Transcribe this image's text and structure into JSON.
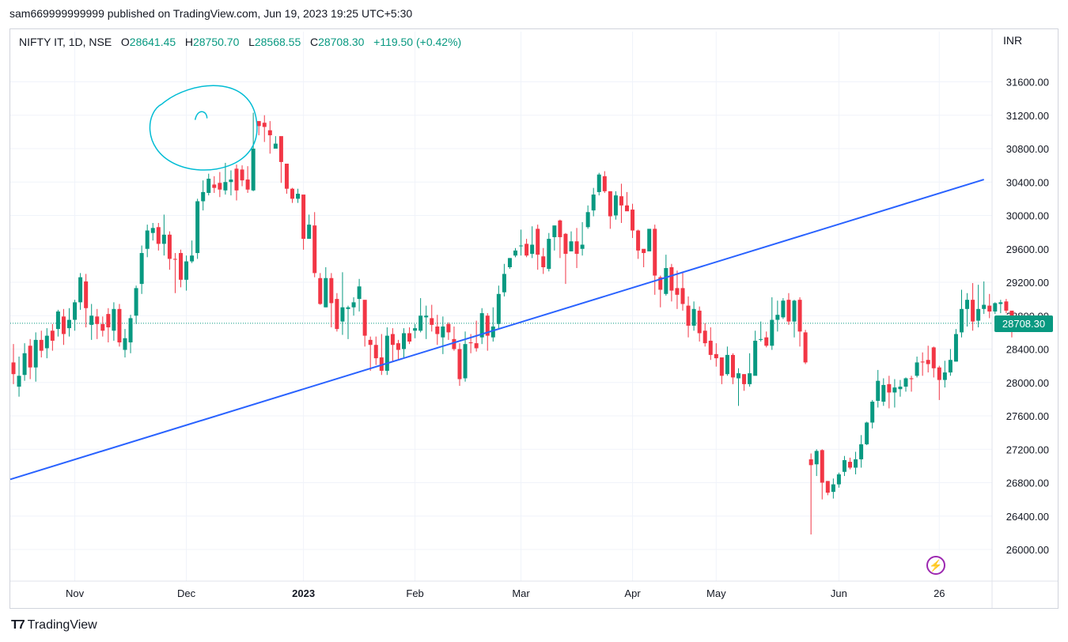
{
  "header": {
    "published_line": "sam669999999999 published on TradingView.com, Jun 19, 2023 19:25 UTC+5:30"
  },
  "legend": {
    "symbol": "NIFTY IT, 1D, NSE",
    "o_label": "O",
    "o_value": "28641.45",
    "h_label": "H",
    "h_value": "28750.70",
    "l_label": "L",
    "l_value": "28568.55",
    "c_label": "C",
    "c_value": "28708.30",
    "change": "+119.50 (+0.42%)"
  },
  "currency": "INR",
  "last_price_label": "28708.30",
  "brand": {
    "name": "TradingView"
  },
  "icons": {
    "flash": "flash-icon",
    "logo": "tradingview-logo-icon"
  },
  "colors": {
    "up": "#089981",
    "down": "#f23645",
    "trendline": "#2962ff",
    "annotation": "#00bcd4"
  },
  "chart_data": {
    "type": "candlestick",
    "symbol": "NIFTY IT",
    "interval": "1D",
    "exchange": "NSE",
    "ylim": [
      25800,
      31900
    ],
    "y_ticks": [
      "26000.00",
      "26400.00",
      "26800.00",
      "27200.00",
      "27600.00",
      "28000.00",
      "28400.00",
      "28800.00",
      "29200.00",
      "29600.00",
      "30000.00",
      "30400.00",
      "30800.00",
      "31200.00",
      "31600.00"
    ],
    "y_tick_values": [
      26000,
      26400,
      26800,
      27200,
      27600,
      28000,
      28400,
      28800,
      29200,
      29600,
      30000,
      30400,
      30800,
      31200,
      31600
    ],
    "x_ticks": [
      {
        "label": "Nov",
        "bar": 11
      },
      {
        "label": "Dec",
        "bar": 31
      },
      {
        "label": "2023",
        "bar": 52
      },
      {
        "label": "Feb",
        "bar": 72
      },
      {
        "label": "Mar",
        "bar": 91
      },
      {
        "label": "Apr",
        "bar": 111
      },
      {
        "label": "May",
        "bar": 126
      },
      {
        "label": "Jun",
        "bar": 148
      },
      {
        "label": "26",
        "bar": 166
      }
    ],
    "last_price": 28708.3,
    "candles": [
      [
        28240,
        28100,
        28460,
        27980
      ],
      [
        27950,
        28080,
        28310,
        27830
      ],
      [
        28090,
        28350,
        28470,
        28020
      ],
      [
        28440,
        28180,
        28520,
        28040
      ],
      [
        28180,
        28510,
        28600,
        28010
      ],
      [
        28510,
        28380,
        28620,
        28300
      ],
      [
        28410,
        28560,
        28650,
        28290
      ],
      [
        28620,
        28500,
        28700,
        28380
      ],
      [
        28640,
        28850,
        28870,
        28550
      ],
      [
        28790,
        28580,
        28880,
        28450
      ],
      [
        28650,
        28750,
        28890,
        28550
      ],
      [
        28750,
        28960,
        28990,
        28620
      ],
      [
        28960,
        29260,
        29310,
        28870
      ],
      [
        29210,
        28890,
        29300,
        28660
      ],
      [
        28690,
        28800,
        28940,
        28510
      ],
      [
        28790,
        28700,
        28880,
        28520
      ],
      [
        28700,
        28620,
        28790,
        28550
      ],
      [
        28820,
        28660,
        28890,
        28480
      ],
      [
        28620,
        28880,
        28960,
        28500
      ],
      [
        28880,
        28480,
        28940,
        28430
      ],
      [
        28390,
        28530,
        28640,
        28300
      ],
      [
        28480,
        28770,
        28810,
        28350
      ],
      [
        28800,
        29130,
        29160,
        28700
      ],
      [
        29180,
        29550,
        29640,
        29060
      ],
      [
        29600,
        29820,
        29890,
        29500
      ],
      [
        29790,
        29850,
        29910,
        29700
      ],
      [
        29860,
        29660,
        29910,
        29580
      ],
      [
        29660,
        29770,
        30010,
        29520
      ],
      [
        29770,
        29480,
        29810,
        29350
      ],
      [
        29480,
        29470,
        29550,
        29070
      ],
      [
        29550,
        29230,
        29590,
        29140
      ],
      [
        29230,
        29450,
        29520,
        29100
      ],
      [
        29450,
        29520,
        29700,
        29430
      ],
      [
        29550,
        30170,
        30200,
        29480
      ],
      [
        30170,
        30280,
        30420,
        30060
      ],
      [
        30270,
        30440,
        30500,
        30240
      ],
      [
        30370,
        30330,
        30470,
        30270
      ],
      [
        30390,
        30310,
        30520,
        30220
      ],
      [
        30300,
        30400,
        30630,
        30250
      ],
      [
        30400,
        30430,
        30540,
        30240
      ],
      [
        30560,
        30300,
        30610,
        30180
      ],
      [
        30550,
        30420,
        30600,
        30350
      ],
      [
        30430,
        30310,
        30590,
        30270
      ],
      [
        30300,
        30800,
        31230,
        30290
      ],
      [
        31130,
        31070,
        31130,
        30960
      ],
      [
        31110,
        31060,
        31200,
        30880
      ],
      [
        31020,
        30960,
        31130,
        30740
      ],
      [
        30800,
        30860,
        30950,
        30820
      ],
      [
        30950,
        30640,
        30680,
        30390
      ],
      [
        30620,
        30320,
        30530,
        30260
      ],
      [
        30320,
        30200,
        30330,
        30150
      ],
      [
        30200,
        30260,
        30320,
        30150
      ],
      [
        30250,
        29720,
        30200,
        29590
      ],
      [
        29720,
        29890,
        30010,
        29870
      ],
      [
        29880,
        29310,
        30040,
        29260
      ],
      [
        29250,
        28940,
        29310,
        28930
      ],
      [
        28900,
        29250,
        29380,
        28900
      ],
      [
        29250,
        28950,
        29310,
        28660
      ],
      [
        29000,
        28640,
        29070,
        28610
      ],
      [
        28730,
        28900,
        29320,
        28570
      ],
      [
        28880,
        28900,
        28920,
        28520
      ],
      [
        28900,
        28960,
        29020,
        28800
      ],
      [
        29000,
        29150,
        29240,
        28850
      ],
      [
        28990,
        28560,
        28920,
        28430
      ],
      [
        28510,
        28450,
        28550,
        28140
      ],
      [
        28450,
        28290,
        28550,
        28210
      ],
      [
        28300,
        28140,
        28580,
        28090
      ],
      [
        28140,
        28560,
        28660,
        28090
      ],
      [
        28580,
        28450,
        28650,
        28250
      ],
      [
        28470,
        28390,
        28510,
        28280
      ],
      [
        28400,
        28590,
        28650,
        28300
      ],
      [
        28590,
        28490,
        28660,
        28460
      ],
      [
        28620,
        28650,
        28700,
        28530
      ],
      [
        28620,
        28800,
        29010,
        28600
      ],
      [
        28780,
        28800,
        28920,
        28520
      ],
      [
        28770,
        28690,
        28930,
        28610
      ],
      [
        28670,
        28580,
        28810,
        28450
      ],
      [
        28540,
        28670,
        28790,
        28340
      ],
      [
        28700,
        28600,
        28720,
        28510
      ],
      [
        28520,
        28400,
        28670,
        28380
      ],
      [
        28400,
        28040,
        28470,
        27960
      ],
      [
        28050,
        28460,
        28610,
        28010
      ],
      [
        28480,
        28470,
        28580,
        28350
      ],
      [
        28470,
        28410,
        28740,
        28370
      ],
      [
        28540,
        28830,
        28890,
        28460
      ],
      [
        28800,
        28560,
        28830,
        28380
      ],
      [
        28540,
        28670,
        28900,
        28490
      ],
      [
        28700,
        29060,
        29160,
        28650
      ],
      [
        29080,
        29300,
        29420,
        29030
      ],
      [
        29380,
        29490,
        29490,
        29360
      ],
      [
        29520,
        29580,
        29610,
        29500
      ],
      [
        29640,
        29640,
        29830,
        29520
      ],
      [
        29660,
        29520,
        29720,
        29500
      ],
      [
        29540,
        29650,
        29870,
        29490
      ],
      [
        29840,
        29530,
        29890,
        29350
      ],
      [
        29510,
        29380,
        29610,
        29300
      ],
      [
        29360,
        29720,
        29790,
        29330
      ],
      [
        29740,
        29880,
        29880,
        29580
      ],
      [
        29940,
        29740,
        29950,
        29490
      ],
      [
        29780,
        29540,
        29790,
        29180
      ],
      [
        29570,
        29690,
        29810,
        29570
      ],
      [
        29690,
        29540,
        29850,
        29370
      ],
      [
        29600,
        29650,
        29920,
        29520
      ],
      [
        29860,
        30040,
        30120,
        29840
      ],
      [
        30060,
        30250,
        30330,
        29990
      ],
      [
        30280,
        30490,
        30510,
        30240
      ],
      [
        30470,
        30290,
        30530,
        30270
      ],
      [
        30290,
        29990,
        30290,
        29840
      ],
      [
        30000,
        30240,
        30290,
        29950
      ],
      [
        30230,
        30120,
        30380,
        29910
      ],
      [
        30120,
        30050,
        30280,
        30060
      ],
      [
        30070,
        29820,
        30140,
        29730
      ],
      [
        29820,
        29580,
        29830,
        29480
      ],
      [
        29600,
        29550,
        29590,
        29380
      ],
      [
        29570,
        29840,
        29820,
        29570
      ],
      [
        29840,
        29280,
        29890,
        29050
      ],
      [
        29260,
        29110,
        29280,
        28900
      ],
      [
        29060,
        29370,
        29530,
        29040
      ],
      [
        29380,
        29100,
        29420,
        28970
      ],
      [
        29130,
        29050,
        29340,
        28880
      ],
      [
        29130,
        28940,
        29320,
        28860
      ],
      [
        28920,
        28680,
        29030,
        28540
      ],
      [
        28680,
        28880,
        28970,
        28620
      ],
      [
        28860,
        28590,
        28910,
        28490
      ],
      [
        28620,
        28470,
        28710,
        28430
      ],
      [
        28500,
        28330,
        28660,
        28270
      ],
      [
        28340,
        28290,
        28470,
        28190
      ],
      [
        28300,
        28080,
        28280,
        27980
      ],
      [
        28100,
        28330,
        28430,
        28080
      ],
      [
        28330,
        28060,
        28350,
        27980
      ],
      [
        28050,
        28110,
        28170,
        27720
      ],
      [
        28100,
        27980,
        28100,
        27900
      ],
      [
        27980,
        28110,
        28350,
        27950
      ],
      [
        28080,
        28500,
        28620,
        28380
      ],
      [
        28510,
        28520,
        28730,
        28490
      ],
      [
        28540,
        28440,
        28610,
        28420
      ],
      [
        28440,
        28750,
        29020,
        28390
      ],
      [
        28750,
        28810,
        28980,
        28610
      ],
      [
        28780,
        28980,
        29010,
        28760
      ],
      [
        28990,
        28730,
        29070,
        28690
      ],
      [
        28730,
        28980,
        28990,
        28540
      ],
      [
        28990,
        28610,
        29020,
        28430
      ],
      [
        28600,
        28240,
        28630,
        28220
      ],
      [
        27080,
        27010,
        27150,
        26180
      ],
      [
        27020,
        27180,
        27200,
        26880
      ],
      [
        27190,
        26800,
        27200,
        26600
      ],
      [
        26820,
        26680,
        26820,
        26650
      ],
      [
        26690,
        26780,
        26850,
        26610
      ],
      [
        26780,
        26900,
        26920,
        26740
      ],
      [
        26930,
        27070,
        27120,
        26880
      ],
      [
        27050,
        26980,
        27100,
        26960
      ],
      [
        26980,
        27080,
        27170,
        26900
      ],
      [
        27080,
        27260,
        27370,
        26980
      ],
      [
        27260,
        27520,
        27530,
        27250
      ],
      [
        27520,
        27770,
        27790,
        27450
      ],
      [
        27780,
        28020,
        28150,
        27700
      ],
      [
        27770,
        27970,
        28050,
        27720
      ],
      [
        27980,
        27880,
        28080,
        27690
      ],
      [
        27880,
        27940,
        28040,
        27700
      ],
      [
        27920,
        27950,
        28030,
        27830
      ],
      [
        27950,
        28050,
        28060,
        27890
      ],
      [
        28050,
        28040,
        28080,
        27890
      ],
      [
        28080,
        28240,
        28310,
        28060
      ],
      [
        28250,
        28240,
        28360,
        28080
      ],
      [
        28270,
        28220,
        28440,
        28120
      ],
      [
        28420,
        28170,
        28430,
        28060
      ],
      [
        28180,
        28030,
        28200,
        27790
      ],
      [
        28030,
        28120,
        28260,
        27940
      ],
      [
        28120,
        28270,
        28400,
        28080
      ],
      [
        28250,
        28580,
        28640,
        28250
      ],
      [
        28600,
        28880,
        29110,
        28540
      ],
      [
        28880,
        28990,
        29070,
        28670
      ],
      [
        28990,
        28730,
        29190,
        28620
      ],
      [
        28740,
        28880,
        29170,
        28660
      ],
      [
        28880,
        28930,
        29210,
        28820
      ],
      [
        28920,
        28850,
        29060,
        28770
      ],
      [
        28850,
        28950,
        28960,
        28820
      ],
      [
        28940,
        28960,
        28990,
        28830
      ],
      [
        28970,
        28860,
        29000,
        28830
      ],
      [
        28860,
        28700,
        28800,
        28540
      ],
      [
        28700,
        28800,
        28770,
        28700
      ]
    ],
    "trendline": {
      "from": {
        "bar": 0,
        "value": 26840
      },
      "to": {
        "bar": 174,
        "value": 30430
      }
    },
    "annotations": [
      "circle-around-peak"
    ]
  }
}
